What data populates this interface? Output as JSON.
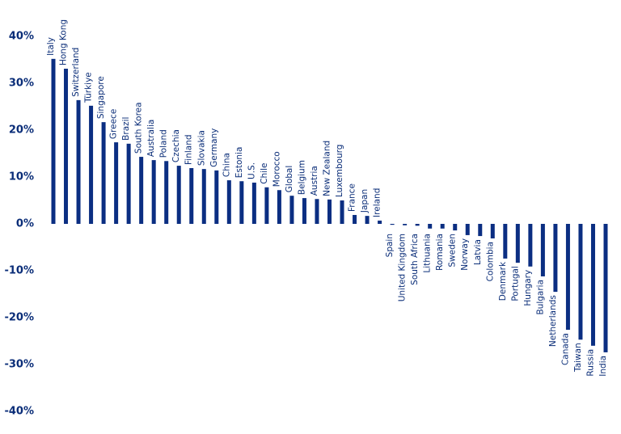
{
  "chart_data": {
    "type": "bar",
    "color": "#0b2e82",
    "categories": [
      "Italy",
      "Hong Kong",
      "Switzerland",
      "Türkiye",
      "Singapore",
      "Greece",
      "Brazil",
      "South Korea",
      "Australia",
      "Poland",
      "Czechia",
      "Finland",
      "Slovakia",
      "Germany",
      "China",
      "Estonia",
      "U.S.",
      "Chile",
      "Morocco",
      "Global",
      "Belgium",
      "Austria",
      "New Zealand",
      "Luxembourg",
      "France",
      "Japan",
      "Ireland",
      "Spain",
      "United Kingdom",
      "South Africa",
      "Lithuania",
      "Romania",
      "Sweden",
      "Norway",
      "Latvia",
      "Colombia",
      "Denmark",
      "Portugal",
      "Hungary",
      "Bulgaria",
      "Netherlands",
      "Canada",
      "Taiwan",
      "Russia",
      "India"
    ],
    "values": [
      35.2,
      33.1,
      26.4,
      25.2,
      21.7,
      17.4,
      17.1,
      14.3,
      13.6,
      13.4,
      12.4,
      11.9,
      11.7,
      11.4,
      9.3,
      9.1,
      8.8,
      7.8,
      7.2,
      6.0,
      5.5,
      5.3,
      5.2,
      5.0,
      1.9,
      1.7,
      0.7,
      -0.2,
      -0.3,
      -0.4,
      -1.0,
      -1.0,
      -1.4,
      -2.4,
      -2.6,
      -3.1,
      -7.4,
      -8.3,
      -9.1,
      -11.2,
      -14.5,
      -22.6,
      -24.7,
      -26.0,
      -27.4
    ],
    "ylim": [
      -40,
      40
    ],
    "yticks": [
      {
        "value": -40,
        "label": "-40%"
      },
      {
        "value": -30,
        "label": "-30%"
      },
      {
        "value": -20,
        "label": "-20%"
      },
      {
        "value": -10,
        "label": "-10%"
      },
      {
        "value": 0,
        "label": "0%"
      },
      {
        "value": 10,
        "label": "10%"
      },
      {
        "value": 20,
        "label": "20%"
      },
      {
        "value": 30,
        "label": "30%"
      },
      {
        "value": 40,
        "label": "40%"
      }
    ],
    "grid": false
  }
}
